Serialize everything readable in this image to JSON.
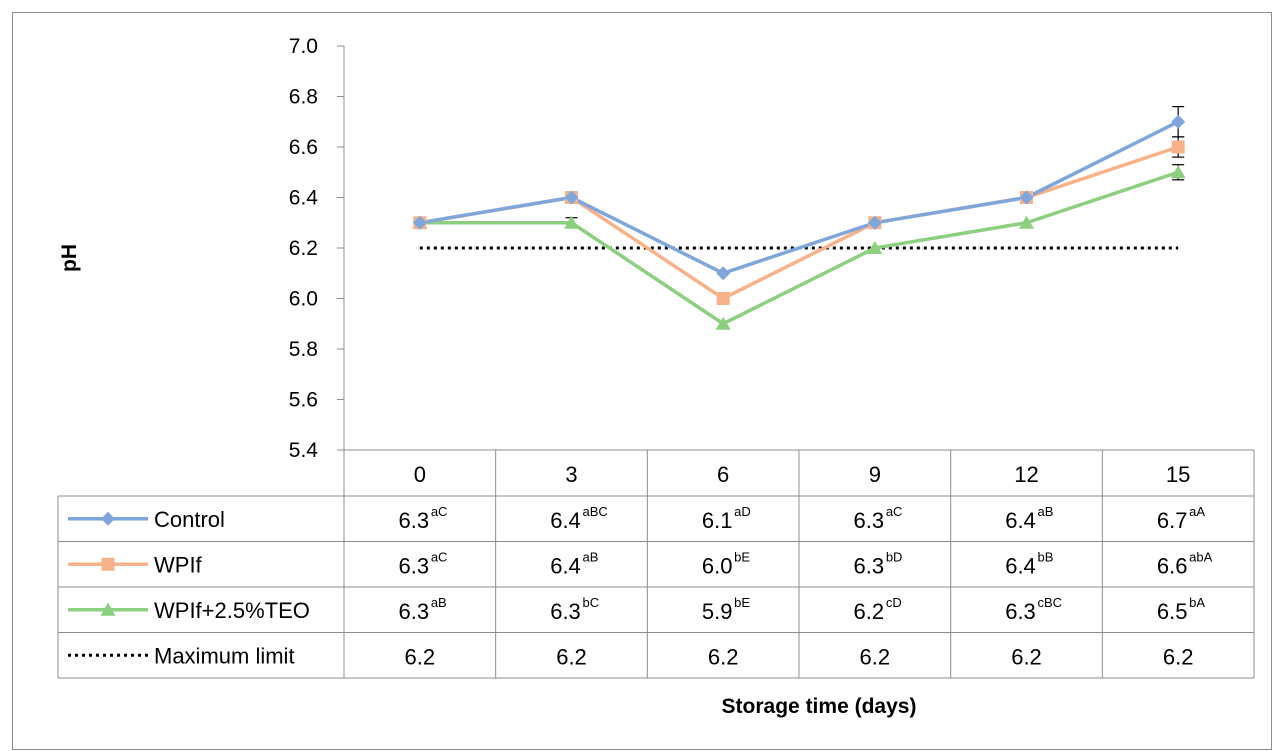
{
  "chart_data": {
    "type": "line",
    "ylabel": "pH",
    "xlabel": "Storage time (days)",
    "ylim": [
      5.4,
      7.0
    ],
    "y_ticks": [
      "5.4",
      "5.6",
      "5.8",
      "6.0",
      "6.2",
      "6.4",
      "6.6",
      "6.8",
      "7.0"
    ],
    "categories": [
      "0",
      "3",
      "6",
      "9",
      "12",
      "15"
    ],
    "grid": false,
    "legend": "data-table-bottom",
    "series": [
      {
        "name": "Control",
        "color": "#7ea6db",
        "marker": "diamond",
        "values": [
          6.3,
          6.4,
          6.1,
          6.3,
          6.4,
          6.7
        ],
        "labels": [
          "6.3",
          "6.4",
          "6.1",
          "6.3",
          "6.4",
          "6.7"
        ],
        "letters": [
          "aC",
          "aBC",
          "aD",
          "aC",
          "aB",
          "aA"
        ],
        "errors": [
          0,
          0,
          0,
          0,
          0,
          0.06
        ]
      },
      {
        "name": "WPIf",
        "color": "#f7b28a",
        "marker": "square",
        "values": [
          6.3,
          6.4,
          6.0,
          6.3,
          6.4,
          6.6
        ],
        "labels": [
          "6.3",
          "6.4",
          "6.0",
          "6.3",
          "6.4",
          "6.6"
        ],
        "letters": [
          "aC",
          "aB",
          "bE",
          "bD",
          "bB",
          "abA"
        ],
        "errors": [
          0,
          0,
          0,
          0,
          0,
          0.04
        ]
      },
      {
        "name": "WPIf+2.5%TEO",
        "color": "#8ccf7e",
        "marker": "triangle",
        "values": [
          6.3,
          6.3,
          5.9,
          6.2,
          6.3,
          6.5
        ],
        "labels": [
          "6.3",
          "6.3",
          "5.9",
          "6.2",
          "6.3",
          "6.5"
        ],
        "letters": [
          "aB",
          "bC",
          "bE",
          "cD",
          "cBC",
          "bA"
        ],
        "errors": [
          0,
          0.02,
          0,
          0,
          0,
          0.03
        ]
      },
      {
        "name": "Maximum limit",
        "color": "#000000",
        "marker": "none",
        "dashed": true,
        "values": [
          6.2,
          6.2,
          6.2,
          6.2,
          6.2,
          6.2
        ],
        "labels": [
          "6.2",
          "6.2",
          "6.2",
          "6.2",
          "6.2",
          "6.2"
        ],
        "letters": [
          "",
          "",
          "",
          "",
          "",
          ""
        ]
      }
    ]
  }
}
